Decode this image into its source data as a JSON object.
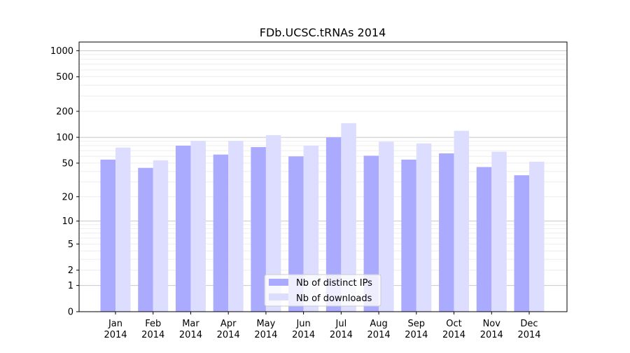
{
  "chart_data": {
    "type": "bar",
    "title": "FDb.UCSC.tRNAs 2014",
    "xlabel": "",
    "ylabel": "",
    "yscale": "log(1+x)",
    "ylim": [
      0,
      1300
    ],
    "yticks": [
      0,
      1,
      2,
      5,
      10,
      20,
      50,
      100,
      200,
      500,
      1000
    ],
    "categories": [
      "Jan",
      "Feb",
      "Mar",
      "Apr",
      "May",
      "Jun",
      "Jul",
      "Aug",
      "Sep",
      "Oct",
      "Nov",
      "Dec"
    ],
    "category_year": "2014",
    "series": [
      {
        "name": "Nb of distinct IPs",
        "color": "#aaaaff",
        "values": [
          55,
          44,
          80,
          63,
          77,
          60,
          100,
          61,
          55,
          65,
          45,
          36
        ]
      },
      {
        "name": "Nb of downloads",
        "color": "#ddddff",
        "values": [
          76,
          54,
          91,
          91,
          106,
          80,
          146,
          89,
          85,
          119,
          68,
          52
        ]
      }
    ],
    "grid": true,
    "legend_position": "bottom-center"
  }
}
